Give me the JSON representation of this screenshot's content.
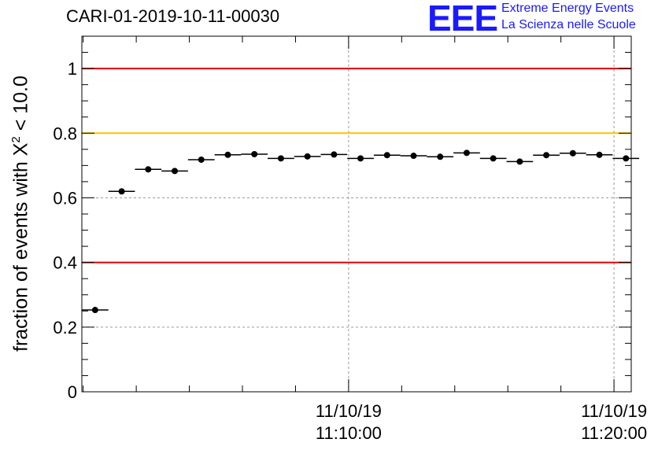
{
  "header": {
    "title": "CARI-01-2019-10-11-00030",
    "logo_mark": "EEE",
    "logo_line1": "Extreme Energy Events",
    "logo_line2": "La Scienza nelle Scuole"
  },
  "colors": {
    "red_line": "#e00000",
    "yellow_line": "#ffc000",
    "logo": "#1a1aff",
    "markers": "#000000",
    "grid": "#9a9a9a"
  },
  "chart_data": {
    "type": "scatter",
    "title": "CARI-01-2019-10-11-00030",
    "ylabel": {
      "prefix": "fraction of events with X",
      "superscript": "2",
      "suffix": " < 10.0"
    },
    "ylim": [
      0,
      1.1
    ],
    "yticks": [
      0,
      0.2,
      0.4,
      0.6,
      0.8,
      1
    ],
    "ytick_labels": [
      "0",
      "0.2",
      "0.4",
      "0.6",
      "0.8",
      "1"
    ],
    "xlim_minutes": [
      -2.05,
      18.65
    ],
    "x_unit": "minutes after 11/10/19 11:02:00",
    "xticks": [
      {
        "x": 8,
        "date": "11/10/19",
        "time": "11:10:00"
      },
      {
        "x": 18,
        "date": "11/10/19",
        "time": "11:20:00"
      }
    ],
    "grid": true,
    "bin_width_minutes": 1,
    "points": {
      "x": [
        -1.55,
        -0.55,
        0.45,
        1.45,
        2.45,
        3.45,
        4.45,
        5.45,
        6.45,
        7.45,
        8.45,
        9.45,
        10.45,
        11.45,
        12.45,
        13.45,
        14.45,
        15.45,
        16.45,
        17.45,
        18.45
      ],
      "y": [
        0.253,
        0.62,
        0.688,
        0.683,
        0.718,
        0.733,
        0.735,
        0.722,
        0.728,
        0.734,
        0.722,
        0.732,
        0.73,
        0.727,
        0.739,
        0.722,
        0.712,
        0.732,
        0.738,
        0.733,
        0.722
      ]
    },
    "reference_lines": [
      {
        "y": 1.0,
        "color": "#e00000"
      },
      {
        "y": 0.8,
        "color": "#ffc000"
      },
      {
        "y": 0.4,
        "color": "#e00000"
      }
    ]
  }
}
